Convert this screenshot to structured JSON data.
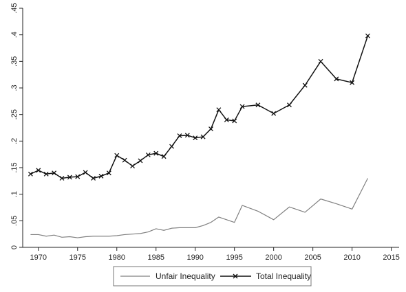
{
  "chart_data": {
    "type": "line",
    "title": "",
    "xlabel": "",
    "ylabel": "",
    "xlim": [
      1968,
      2016
    ],
    "ylim": [
      0,
      0.45
    ],
    "xticks": [
      1970,
      1975,
      1980,
      1985,
      1990,
      1995,
      2000,
      2005,
      2010,
      2015
    ],
    "yticks": [
      0,
      0.05,
      0.1,
      0.15,
      0.2,
      0.25,
      0.3,
      0.35,
      0.4,
      0.45
    ],
    "ytick_labels": [
      "0",
      ".05",
      ".1",
      ".15",
      ".2",
      ".25",
      ".3",
      ".35",
      ".4",
      ".45"
    ],
    "grid": false,
    "legend_position": "bottom",
    "series": [
      {
        "name": "Unfair Inequality",
        "color": "#808080",
        "marker": "none",
        "points": [
          [
            1969,
            0.024
          ],
          [
            1970,
            0.024
          ],
          [
            1971,
            0.021
          ],
          [
            1972,
            0.023
          ],
          [
            1973,
            0.019
          ],
          [
            1974,
            0.02
          ],
          [
            1975,
            0.018
          ],
          [
            1976,
            0.02
          ],
          [
            1977,
            0.021
          ],
          [
            1978,
            0.021
          ],
          [
            1979,
            0.021
          ],
          [
            1980,
            0.022
          ],
          [
            1981,
            0.024
          ],
          [
            1982,
            0.025
          ],
          [
            1983,
            0.026
          ],
          [
            1984,
            0.029
          ],
          [
            1985,
            0.035
          ],
          [
            1986,
            0.032
          ],
          [
            1987,
            0.036
          ],
          [
            1988,
            0.037
          ],
          [
            1989,
            0.037
          ],
          [
            1990,
            0.037
          ],
          [
            1991,
            0.041
          ],
          [
            1992,
            0.047
          ],
          [
            1993,
            0.057
          ],
          [
            1995,
            0.047
          ],
          [
            1996,
            0.079
          ],
          [
            1998,
            0.068
          ],
          [
            2000,
            0.052
          ],
          [
            2002,
            0.076
          ],
          [
            2004,
            0.066
          ],
          [
            2006,
            0.091
          ],
          [
            2008,
            0.082
          ],
          [
            2010,
            0.072
          ],
          [
            2012,
            0.13
          ]
        ]
      },
      {
        "name": "Total Inequality",
        "color": "#111111",
        "marker": "x",
        "points": [
          [
            1969,
            0.138
          ],
          [
            1970,
            0.145
          ],
          [
            1971,
            0.138
          ],
          [
            1972,
            0.14
          ],
          [
            1973,
            0.13
          ],
          [
            1974,
            0.132
          ],
          [
            1975,
            0.133
          ],
          [
            1976,
            0.141
          ],
          [
            1977,
            0.13
          ],
          [
            1978,
            0.134
          ],
          [
            1979,
            0.14
          ],
          [
            1980,
            0.173
          ],
          [
            1981,
            0.164
          ],
          [
            1982,
            0.153
          ],
          [
            1983,
            0.163
          ],
          [
            1984,
            0.174
          ],
          [
            1985,
            0.177
          ],
          [
            1986,
            0.171
          ],
          [
            1987,
            0.19
          ],
          [
            1988,
            0.21
          ],
          [
            1989,
            0.211
          ],
          [
            1990,
            0.206
          ],
          [
            1991,
            0.208
          ],
          [
            1992,
            0.223
          ],
          [
            1993,
            0.259
          ],
          [
            1994,
            0.24
          ],
          [
            1995,
            0.238
          ],
          [
            1996,
            0.265
          ],
          [
            1998,
            0.268
          ],
          [
            2000,
            0.252
          ],
          [
            2002,
            0.268
          ],
          [
            2004,
            0.305
          ],
          [
            2006,
            0.35
          ],
          [
            2008,
            0.317
          ],
          [
            2010,
            0.31
          ],
          [
            2012,
            0.398
          ]
        ]
      }
    ]
  }
}
